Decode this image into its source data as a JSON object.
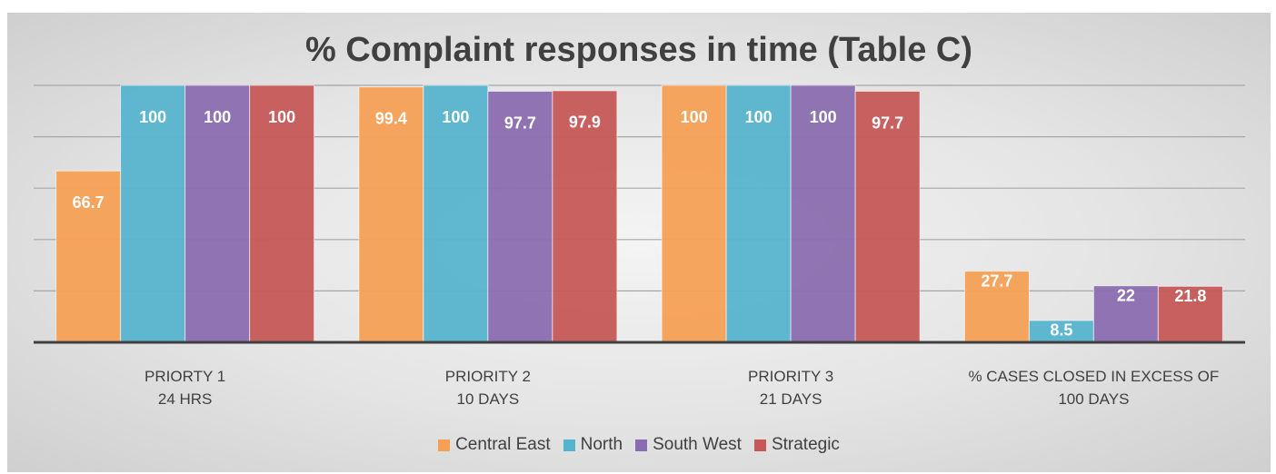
{
  "chart_data": {
    "type": "bar",
    "title": "% Complaint responses in time (Table C)",
    "categories": [
      "PRIORTY 1\n24 HRS",
      "PRIORITY 2\n10 DAYS",
      "PRIORITY 3\n21 DAYS",
      "% CASES CLOSED IN EXCESS OF\n100 DAYS"
    ],
    "series": [
      {
        "name": "Central East",
        "color": "#f5a055",
        "values": [
          66.7,
          99.4,
          100,
          27.7
        ]
      },
      {
        "name": "North",
        "color": "#56b4cd",
        "values": [
          100,
          100,
          100,
          8.5
        ]
      },
      {
        "name": "South West",
        "color": "#8a6daf",
        "values": [
          100,
          97.7,
          100,
          22
        ]
      },
      {
        "name": "Strategic",
        "color": "#c65858",
        "values": [
          100,
          97.9,
          97.7,
          21.8
        ]
      }
    ],
    "ylim": [
      0,
      100
    ],
    "yticks": [
      0,
      20,
      40,
      60,
      80,
      100
    ],
    "grid": true,
    "legend": "bottom"
  }
}
